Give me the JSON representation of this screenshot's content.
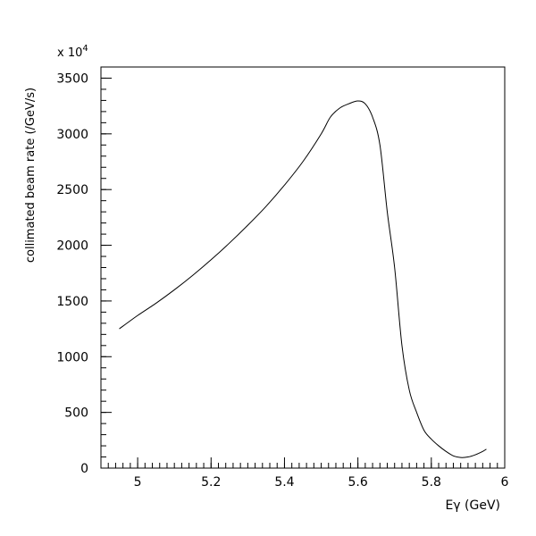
{
  "chart_data": {
    "type": "line",
    "title": "",
    "xlabel": "Eγ (GeV)",
    "ylabel": "collimated beam rate (/GeV/s)",
    "y_multiplier_label": "x 10",
    "y_multiplier_exponent": "4",
    "xlim": [
      4.9,
      6.0
    ],
    "ylim": [
      0,
      3600
    ],
    "xticks": [
      5.0,
      5.2,
      5.4,
      5.6,
      5.8,
      6.0
    ],
    "xtick_labels": [
      "5",
      "5.2",
      "5.4",
      "5.6",
      "5.8",
      "6"
    ],
    "x_minor_step": 0.02,
    "yticks": [
      0,
      500,
      1000,
      1500,
      2000,
      2500,
      3000,
      3500
    ],
    "ytick_labels": [
      "0",
      "500",
      "1000",
      "1500",
      "2000",
      "2500",
      "3000",
      "3500"
    ],
    "y_minor_step": 100,
    "grid": false,
    "series": [
      {
        "x": [
          4.95,
          5.0,
          5.05,
          5.1,
          5.15,
          5.2,
          5.25,
          5.3,
          5.35,
          5.4,
          5.45,
          5.5,
          5.525,
          5.55,
          5.575,
          5.6,
          5.62,
          5.64,
          5.66,
          5.68,
          5.7,
          5.72,
          5.74,
          5.76,
          5.78,
          5.8,
          5.82,
          5.84,
          5.86,
          5.88,
          5.9,
          5.92,
          5.94,
          5.95
        ],
        "y": [
          1250,
          1370,
          1480,
          1600,
          1730,
          1870,
          2020,
          2180,
          2350,
          2540,
          2750,
          3000,
          3150,
          3230,
          3270,
          3295,
          3270,
          3150,
          2900,
          2300,
          1800,
          1100,
          700,
          500,
          340,
          260,
          200,
          150,
          110,
          95,
          100,
          120,
          150,
          170
        ]
      }
    ]
  },
  "colors": {
    "line": "#000000",
    "axes": "#000000",
    "background": "#ffffff"
  }
}
